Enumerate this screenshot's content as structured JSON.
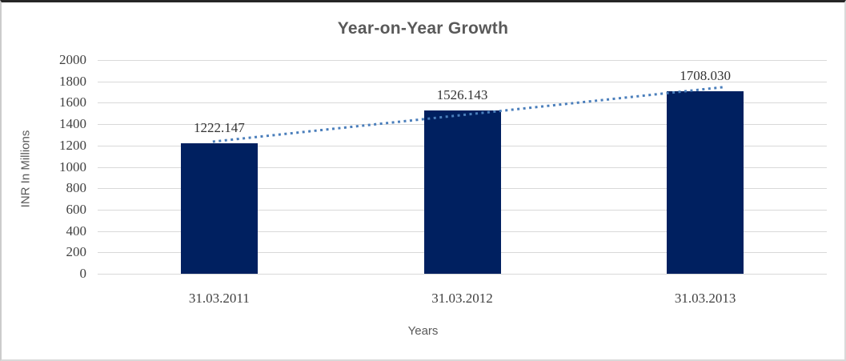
{
  "chart_data": {
    "type": "bar",
    "title": "Year-on-Year Growth",
    "xlabel": "Years",
    "ylabel": "INR In Millions",
    "categories": [
      "31.03.2011",
      "31.03.2012",
      "31.03.2013"
    ],
    "values": [
      1222.147,
      1526.143,
      1708.03
    ],
    "value_labels": [
      "1222.147",
      "1526.143",
      "1708.030"
    ],
    "ylim": [
      0,
      2000
    ],
    "ytick_step": 200,
    "ytick_labels": [
      "0",
      "200",
      "400",
      "600",
      "800",
      "1000",
      "1200",
      "1400",
      "1600",
      "1800",
      "2000"
    ],
    "grid": "horizontal",
    "legend": "none",
    "trendline": {
      "type": "linear",
      "style": "dotted"
    },
    "colors": {
      "bar": "#002060",
      "trendline": "#4a7ebb",
      "gridline": "#d9d9d9",
      "title_text": "#595959",
      "axis_title_text": "#595959",
      "tick_text": "#404040",
      "data_label_text": "#333333"
    }
  }
}
